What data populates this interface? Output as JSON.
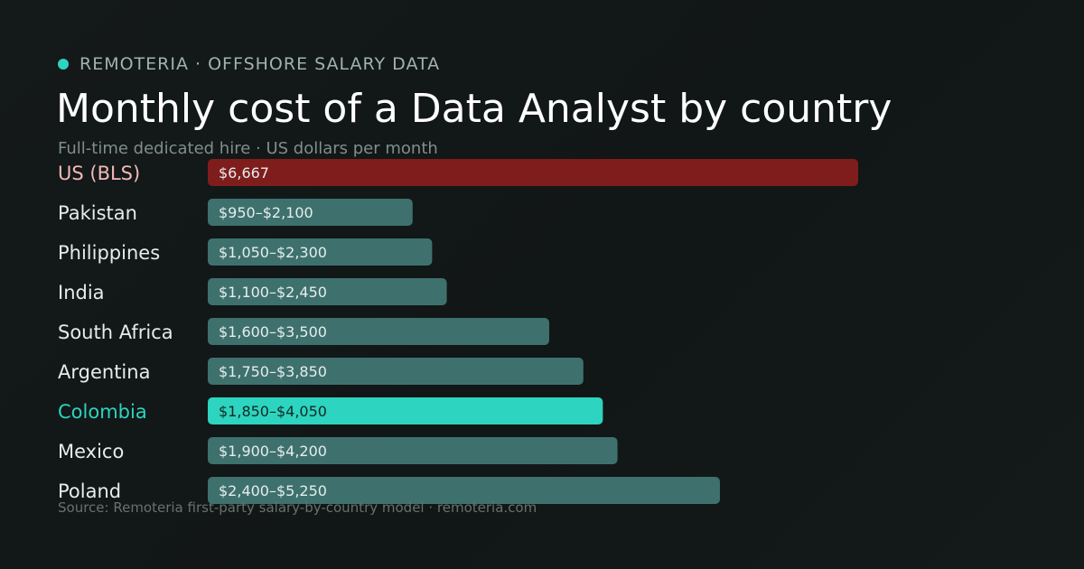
{
  "header": {
    "brand": "REMOTERIA · OFFSHORE SALARY DATA",
    "title": "Monthly cost of a Data Analyst by country",
    "subtitle": "Full-time dedicated hire · US dollars per month"
  },
  "source": "Source: Remoteria first-party salary-by-country model · remoteria.com",
  "colors": {
    "accent": "#2dd4bf",
    "us_bar": "#7f1d1d",
    "us_label": "#f3b8b8",
    "default_bar": "#3e716d",
    "label": "#e6ecec",
    "value_on_dark": "#e6ecec",
    "value_on_accent": "#0f2a27"
  },
  "chart_data": {
    "type": "bar",
    "orientation": "horizontal",
    "unit": "US dollars per month",
    "categories": [
      "US (BLS)",
      "Pakistan",
      "Philippines",
      "India",
      "South Africa",
      "Argentina",
      "Colombia",
      "Mexico",
      "Poland"
    ],
    "rows": [
      {
        "country": "US (BLS)",
        "low": 6667,
        "high": 6667,
        "label": "$6,667",
        "style": "baseline"
      },
      {
        "country": "Pakistan",
        "low": 950,
        "high": 2100,
        "label": "$950–$2,100",
        "style": "default"
      },
      {
        "country": "Philippines",
        "low": 1050,
        "high": 2300,
        "label": "$1,050–$2,300",
        "style": "default"
      },
      {
        "country": "India",
        "low": 1100,
        "high": 2450,
        "label": "$1,100–$2,450",
        "style": "default"
      },
      {
        "country": "South Africa",
        "low": 1600,
        "high": 3500,
        "label": "$1,600–$3,500",
        "style": "default"
      },
      {
        "country": "Argentina",
        "low": 1750,
        "high": 3850,
        "label": "$1,750–$3,850",
        "style": "default"
      },
      {
        "country": "Colombia",
        "low": 1850,
        "high": 4050,
        "label": "$1,850–$4,050",
        "style": "highlight"
      },
      {
        "country": "Mexico",
        "low": 1900,
        "high": 4200,
        "label": "$1,900–$4,200",
        "style": "default"
      },
      {
        "country": "Poland",
        "low": 2400,
        "high": 5250,
        "label": "$2,400–$5,250",
        "style": "default"
      }
    ],
    "xlim": [
      0,
      6667
    ],
    "grid": false,
    "legend": "none"
  }
}
